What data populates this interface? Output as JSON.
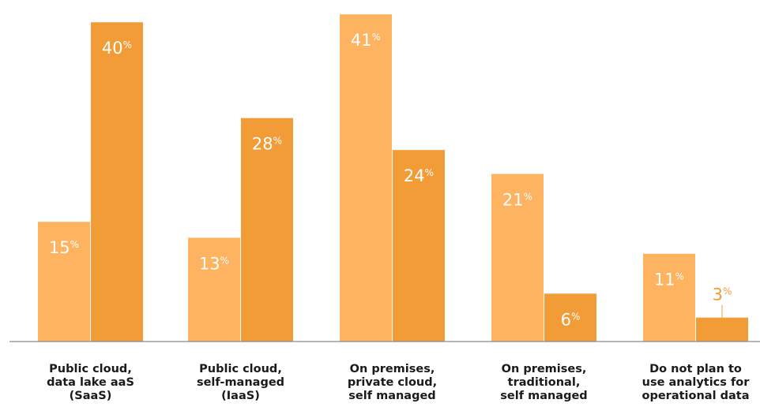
{
  "chart_data": {
    "type": "bar",
    "categories": [
      [
        "Public cloud,",
        "data lake aaS",
        "(SaaS)"
      ],
      [
        "Public cloud,",
        "self-managed",
        "(IaaS)"
      ],
      [
        "On premises,",
        "private cloud,",
        "self managed"
      ],
      [
        "On premises,",
        "traditional,",
        "self managed"
      ],
      [
        "Do not plan to",
        "use analytics for",
        "operational data"
      ]
    ],
    "series": [
      {
        "values": [
          15,
          13,
          41,
          21,
          11
        ],
        "value_labels": [
          "15",
          "13",
          "41",
          "21",
          "11"
        ],
        "color": "#fdb35f"
      },
      {
        "values": [
          40,
          28,
          24,
          6,
          3
        ],
        "value_labels": [
          "40",
          "28",
          "24",
          "6",
          "3"
        ],
        "color": "#f29c37"
      }
    ],
    "value_suffix": "%",
    "ylim": [
      0,
      42
    ],
    "grid": false,
    "legend": "none"
  }
}
